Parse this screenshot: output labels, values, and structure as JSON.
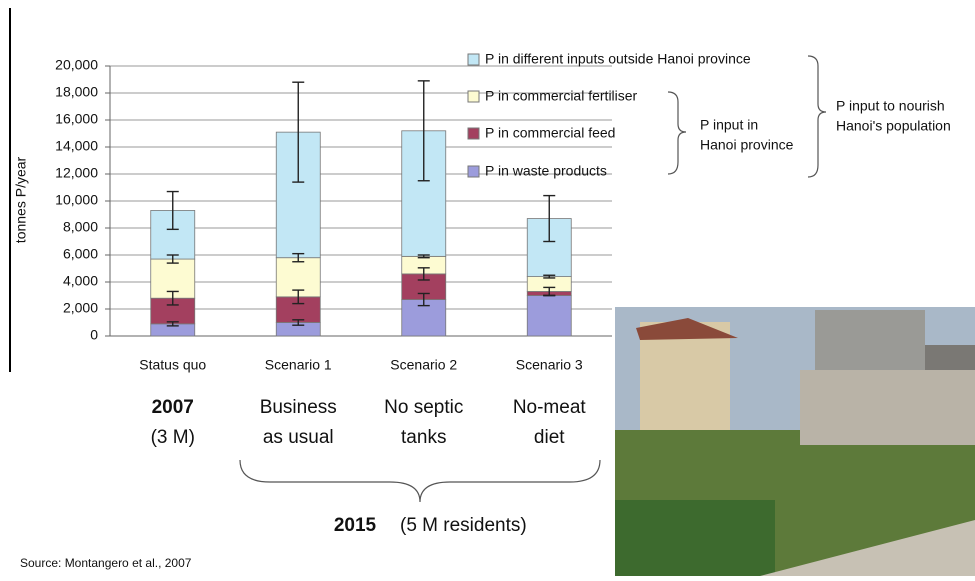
{
  "chart_data": {
    "type": "bar",
    "stacked": true,
    "y_label": "tonnes P/year",
    "categories": [
      "Status quo",
      "Scenario 1",
      "Scenario 2",
      "Scenario 3"
    ],
    "series": [
      {
        "name": "P in waste products",
        "color": "#9c9cdc",
        "values": [
          900,
          1000,
          2700,
          3000
        ],
        "errors": [
          150,
          200,
          450,
          0
        ]
      },
      {
        "name": "P in commercial feed",
        "color": "#a3405f",
        "values": [
          1900,
          1900,
          1900,
          300
        ],
        "errors": [
          500,
          500,
          450,
          300
        ]
      },
      {
        "name": "P in commercial fertiliser",
        "color": "#fdfbd2",
        "values": [
          2900,
          2900,
          1300,
          1100
        ],
        "errors": [
          300,
          300,
          100,
          100
        ]
      },
      {
        "name": "P in different inputs outside Hanoi province",
        "color": "#c2e7f5",
        "values": [
          3600,
          9300,
          9300,
          4300
        ],
        "errors": [
          1400,
          3700,
          3700,
          1700
        ]
      }
    ],
    "ylim": [
      0,
      20000
    ],
    "yticks": [
      0,
      {
        "value": 2000,
        "label": "2,000"
      },
      {
        "value": 4000,
        "label": "4,000"
      },
      {
        "value": 6000,
        "label": "6,000"
      },
      {
        "value": 8000,
        "label": "8,000"
      },
      {
        "value": 10000,
        "label": "10,000"
      },
      {
        "value": 12000,
        "label": "12,000"
      },
      {
        "value": 14000,
        "label": "14,000"
      },
      {
        "value": 16000,
        "label": "16,000"
      },
      {
        "value": 18000,
        "label": "18,000"
      },
      {
        "value": 20000,
        "label": "20,000"
      }
    ],
    "grid": true,
    "brace_labels": [
      [
        "P input in",
        "Hanoi province"
      ],
      [
        "P input to nourish",
        "Hanoi's population"
      ]
    ],
    "scenario_labels": [
      [
        "2007",
        "(3 M)"
      ],
      [
        "Business",
        "as usual"
      ],
      [
        "No septic",
        "tanks"
      ],
      [
        "No-meat",
        "diet"
      ]
    ],
    "period_year": "2015",
    "period_note": "(5 M residents)",
    "source": "Source:  Montangero et al.,  2007"
  }
}
